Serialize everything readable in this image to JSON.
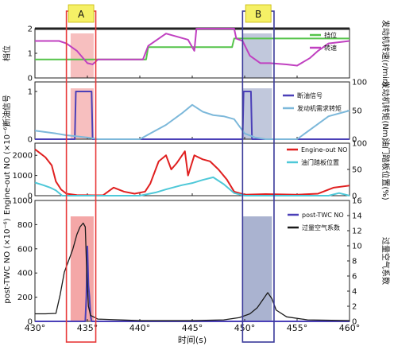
{
  "chart_data": [
    {
      "type": "line",
      "panel": "top",
      "ylabel_left": "档位",
      "ylabel_right": "发动机转速(r/min)",
      "y_left_ticks": [
        0,
        1,
        2
      ],
      "y_left_lim": [
        0,
        2
      ],
      "legend": [
        "挡位",
        "转速"
      ],
      "series": [
        {
          "name": "挡位",
          "color": "#55c44a",
          "x": [
            430,
            438.8,
            439,
            440.6,
            440.8,
            445.6,
            445.8,
            448.8,
            449.0,
            452.0,
            452.2,
            456.2,
            456.4,
            460
          ],
          "y": [
            0.75,
            0.75,
            0.75,
            0.75,
            1.25,
            1.25,
            1.25,
            1.25,
            1.6,
            1.6,
            1.6,
            1.6,
            1.6,
            1.6
          ]
        },
        {
          "name": "转速",
          "color": "#c040c0",
          "x": [
            430,
            431.2,
            432.3,
            433,
            434,
            435,
            435.5,
            436,
            436.8,
            437,
            440.3,
            440.8,
            442.5,
            444.6,
            445.2,
            445.4,
            449,
            449.2,
            449.8,
            450.5,
            451.5,
            452.4,
            454,
            455.0,
            456.2,
            457,
            458,
            460
          ],
          "y": [
            1.5,
            1.5,
            1.5,
            1.4,
            1.1,
            0.6,
            0.55,
            0.75,
            0.75,
            0.75,
            0.75,
            1.3,
            1.8,
            1.55,
            1.1,
            2.0,
            2.0,
            1.6,
            1.5,
            0.9,
            0.6,
            0.6,
            0.55,
            0.5,
            0.8,
            1.1,
            1.4,
            1.5
          ]
        }
      ]
    },
    {
      "type": "line",
      "panel": "second",
      "ylabel_left": "断油信号",
      "ylabel_right": "发动机转矩(Nm)",
      "y_left_ticks": [
        0,
        1
      ],
      "y_right_ticks": [
        0,
        50,
        100
      ],
      "legend": [
        "断油信号",
        "发动机需求转矩"
      ],
      "series": [
        {
          "name": "断油信号",
          "color": "#4b40b8",
          "x": [
            430,
            433.8,
            433.9,
            435.4,
            435.5,
            449.8,
            449.9,
            450.6,
            450.7,
            460
          ],
          "y": [
            0,
            0,
            1,
            1,
            0,
            0,
            1,
            1,
            0,
            0
          ]
        },
        {
          "name": "发动机需求转矩",
          "color": "#7cb8da",
          "x": [
            430,
            432,
            433,
            435,
            436,
            438,
            440,
            441,
            442.5,
            444,
            445,
            446,
            447,
            448,
            449,
            450,
            451,
            452,
            455,
            458,
            460
          ],
          "y": [
            15,
            10,
            7,
            3,
            0,
            0,
            0,
            10,
            25,
            45,
            60,
            48,
            42,
            40,
            35,
            10,
            3,
            0,
            0,
            40,
            50
          ]
        }
      ]
    },
    {
      "type": "line",
      "panel": "third",
      "ylabel_left": "Engine-out NO (×10⁻⁶)",
      "ylabel_right": "油门踏板位置(%)",
      "y_left_ticks": [
        0,
        1000,
        2000
      ],
      "y_right_ticks": [
        0,
        50,
        100
      ],
      "legend": [
        "Engine-out NO",
        "油门踏板位置"
      ],
      "series": [
        {
          "name": "Engine-out NO",
          "color": "#e02020",
          "x": [
            430,
            430.5,
            431,
            431.6,
            432,
            432.5,
            433,
            434,
            435.5,
            436.5,
            437.5,
            438.5,
            439.5,
            440.5,
            441,
            441.8,
            442.5,
            443.0,
            443.5,
            444.3,
            444.6,
            445.2,
            446,
            446.7,
            447.5,
            448.3,
            449,
            450,
            452,
            455,
            457,
            458.5,
            460
          ],
          "y": [
            2300,
            2100,
            1900,
            1500,
            700,
            300,
            100,
            30,
            20,
            20,
            400,
            200,
            100,
            200,
            600,
            1700,
            2000,
            1300,
            1600,
            2200,
            1000,
            2000,
            1800,
            1700,
            1300,
            800,
            200,
            50,
            80,
            50,
            100,
            400,
            500
          ]
        },
        {
          "name": "油门踏板位置",
          "color": "#4ec8d8",
          "x": [
            430,
            430.8,
            431.5,
            432,
            432.6,
            433.5,
            436,
            440,
            441.5,
            442.5,
            444,
            445,
            446,
            447,
            448,
            449,
            450,
            455,
            458,
            459,
            460
          ],
          "y": [
            25,
            20,
            15,
            10,
            0,
            0,
            0,
            0,
            6,
            12,
            20,
            24,
            30,
            35,
            22,
            5,
            0,
            0,
            0,
            5,
            0
          ]
        }
      ]
    },
    {
      "type": "line",
      "panel": "bottom",
      "ylabel_left": "post-TWC NO (×10⁻⁶)",
      "ylabel_right": "过量空气系数",
      "y_left_ticks": [
        0,
        200,
        400,
        600,
        800,
        1000
      ],
      "y_right_ticks": [
        0,
        2,
        4,
        6,
        8,
        10,
        12,
        14,
        16
      ],
      "xlabel": "时间(s)",
      "x_ticks": [
        "430°",
        "435°",
        "440°",
        "445°",
        "450°",
        "455°",
        "460°"
      ],
      "x_ticks_values": [
        430,
        435,
        440,
        445,
        450,
        455,
        460
      ],
      "xlim": [
        430,
        460
      ],
      "legend": [
        "post-TWC NO",
        "过量空气系数"
      ],
      "series": [
        {
          "name": "post-TWC NO",
          "color": "#4b40b8",
          "x": [
            430,
            434.8,
            434.9,
            435.0,
            435.1,
            435.2,
            435.3,
            435.4,
            460
          ],
          "y": [
            0,
            0,
            200,
            620,
            300,
            200,
            50,
            0,
            0
          ]
        },
        {
          "name": "过量空气系数",
          "color": "#1a1a1a",
          "x": [
            430,
            431,
            432,
            432.4,
            432.8,
            433.2,
            433.6,
            434,
            434.3,
            434.6,
            434.8,
            434.95,
            435.1,
            435.3,
            436,
            440,
            445,
            448,
            449.5,
            450.5,
            451.2,
            451.8,
            452.2,
            452.6,
            453,
            454,
            456,
            460
          ],
          "y": [
            1.0,
            1.0,
            1.05,
            3.5,
            6.5,
            8,
            9.5,
            11.5,
            12.5,
            13,
            12.5,
            6,
            2,
            0.8,
            0.3,
            0.1,
            0.1,
            0.2,
            0.5,
            1.0,
            1.8,
            3.0,
            3.8,
            3.0,
            1.5,
            0.6,
            0.2,
            0.1
          ]
        }
      ]
    }
  ],
  "annotations": {
    "box_a": {
      "label": "A",
      "x_range": [
        433.0,
        435.8
      ],
      "color": "#e83a3a"
    },
    "box_b": {
      "label": "B",
      "x_range": [
        449.8,
        452.8
      ],
      "color": "#3a3a9a"
    }
  }
}
